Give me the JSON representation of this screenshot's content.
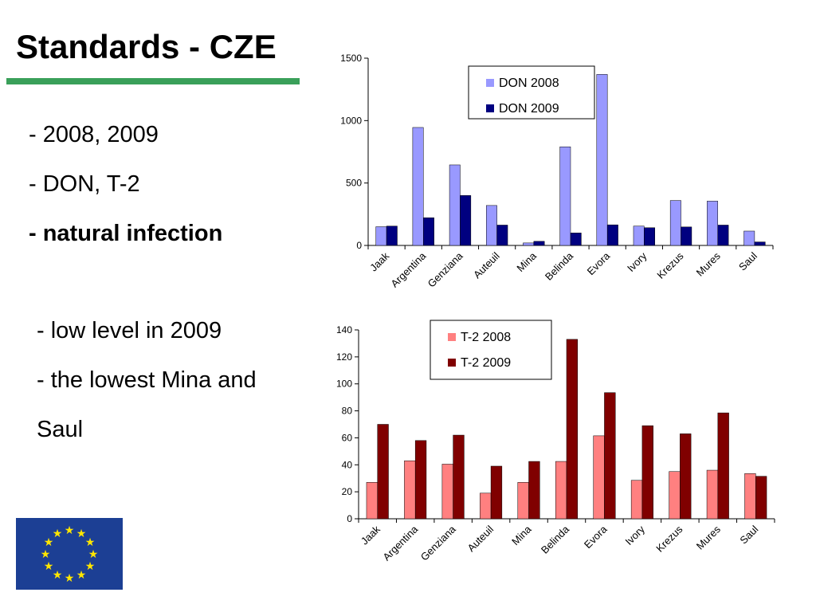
{
  "slide": {
    "title": "Standards - CZE",
    "underline_color": "#3aa05a",
    "bullets_top": [
      {
        "text": "- 2008, 2009",
        "bold": false
      },
      {
        "text": "- DON, T-2",
        "bold": false
      },
      {
        "text": "- natural infection",
        "bold": true
      }
    ],
    "bullets_bottom": [
      {
        "text": "- low level in 2009",
        "bold": false
      },
      {
        "text": "- the lowest Mina and",
        "bold": false
      },
      {
        "text": "Saul",
        "bold": false
      }
    ],
    "logo": {
      "name": "eu-flag",
      "background": "#1c3f94",
      "star_color": "#ffe600"
    }
  },
  "chart_data": [
    {
      "type": "bar",
      "categories": [
        "Jaak",
        "Argentina",
        "Genziana",
        "Auteuil",
        "Mina",
        "Belinda",
        "Evora",
        "Ivory",
        "Krezus",
        "Mures",
        "Saul"
      ],
      "series": [
        {
          "name": "DON 2008",
          "color": "#9999ff",
          "values": [
            150,
            945,
            645,
            320,
            20,
            790,
            1370,
            155,
            360,
            355,
            115
          ]
        },
        {
          "name": "DON 2009",
          "color": "#000080",
          "values": [
            155,
            222,
            400,
            163,
            33,
            100,
            165,
            142,
            148,
            163,
            28
          ]
        }
      ],
      "ylim": [
        0,
        1500
      ],
      "yticks": [
        0,
        500,
        1000,
        1500
      ],
      "legend_position": "top-right",
      "grid": false
    },
    {
      "type": "bar",
      "categories": [
        "Jaak",
        "Argentina",
        "Genziana",
        "Auteuil",
        "Mina",
        "Belinda",
        "Evora",
        "Ivory",
        "Krezus",
        "Mures",
        "Saul"
      ],
      "series": [
        {
          "name": "T-2 2008",
          "color": "#ff8080",
          "values": [
            27,
            43,
            40.5,
            19,
            27,
            42.5,
            61.5,
            28.5,
            35,
            36,
            33.5
          ]
        },
        {
          "name": "T-2 2009",
          "color": "#800000",
          "values": [
            70,
            58,
            62,
            39,
            42.5,
            133,
            93.5,
            69,
            63,
            78.5,
            31.5
          ]
        }
      ],
      "ylim": [
        0,
        140
      ],
      "yticks": [
        0,
        20,
        40,
        60,
        80,
        100,
        120,
        140
      ],
      "legend_position": "top-right",
      "grid": false
    }
  ]
}
